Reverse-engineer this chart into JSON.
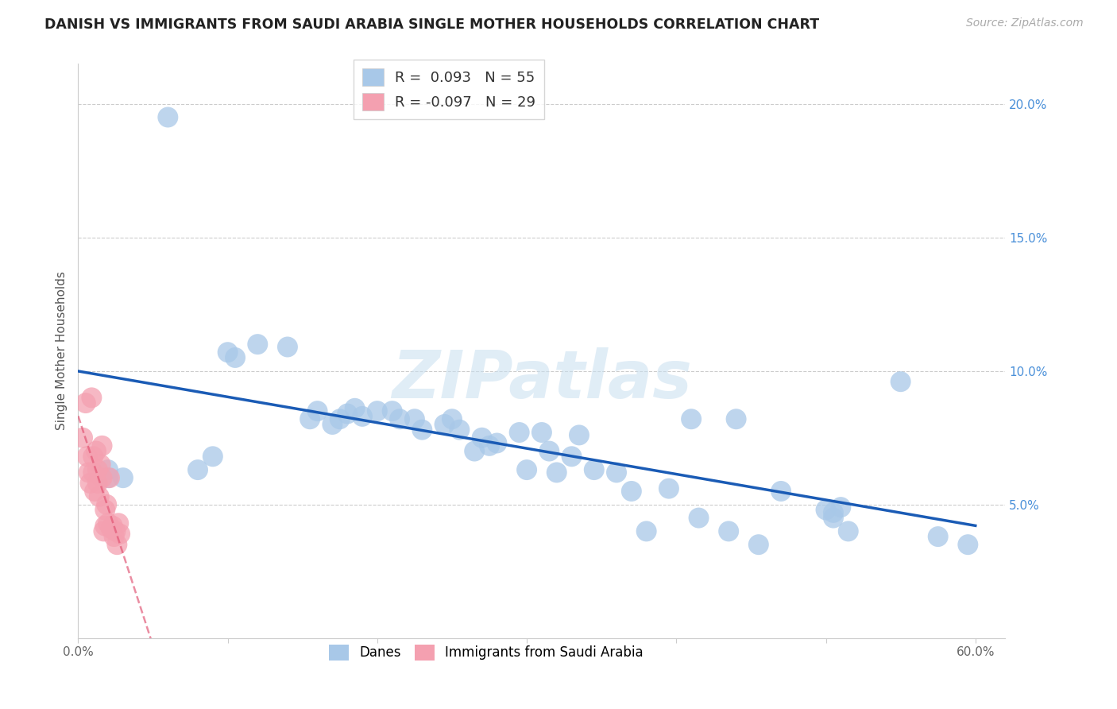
{
  "title": "DANISH VS IMMIGRANTS FROM SAUDI ARABIA SINGLE MOTHER HOUSEHOLDS CORRELATION CHART",
  "source": "Source: ZipAtlas.com",
  "ylabel": "Single Mother Households",
  "danes_R": "0.093",
  "danes_N": "55",
  "immigrants_R": "-0.097",
  "immigrants_N": "29",
  "watermark": "ZIPatlas",
  "danes_color": "#a8c8e8",
  "danes_line_color": "#1a5bb5",
  "immigrants_color": "#f4a0b0",
  "immigrants_line_color": "#e05070",
  "background_color": "#ffffff",
  "grid_color": "#cccccc",
  "danes_x": [
    0.02,
    0.02,
    0.03,
    0.06,
    0.08,
    0.09,
    0.1,
    0.105,
    0.12,
    0.14,
    0.155,
    0.16,
    0.17,
    0.175,
    0.18,
    0.185,
    0.19,
    0.2,
    0.21,
    0.215,
    0.225,
    0.23,
    0.245,
    0.25,
    0.255,
    0.265,
    0.27,
    0.275,
    0.28,
    0.295,
    0.3,
    0.31,
    0.315,
    0.32,
    0.33,
    0.335,
    0.345,
    0.36,
    0.37,
    0.38,
    0.395,
    0.41,
    0.415,
    0.435,
    0.44,
    0.455,
    0.47,
    0.5,
    0.505,
    0.505,
    0.51,
    0.515,
    0.55,
    0.575,
    0.595
  ],
  "danes_y": [
    0.063,
    0.06,
    0.06,
    0.195,
    0.063,
    0.068,
    0.107,
    0.105,
    0.11,
    0.109,
    0.082,
    0.085,
    0.08,
    0.082,
    0.084,
    0.086,
    0.083,
    0.085,
    0.085,
    0.082,
    0.082,
    0.078,
    0.08,
    0.082,
    0.078,
    0.07,
    0.075,
    0.072,
    0.073,
    0.077,
    0.063,
    0.077,
    0.07,
    0.062,
    0.068,
    0.076,
    0.063,
    0.062,
    0.055,
    0.04,
    0.056,
    0.082,
    0.045,
    0.04,
    0.082,
    0.035,
    0.055,
    0.048,
    0.045,
    0.047,
    0.049,
    0.04,
    0.096,
    0.038,
    0.035
  ],
  "immigrants_x": [
    0.003,
    0.005,
    0.006,
    0.007,
    0.008,
    0.009,
    0.01,
    0.01,
    0.011,
    0.012,
    0.013,
    0.013,
    0.014,
    0.015,
    0.016,
    0.016,
    0.017,
    0.018,
    0.018,
    0.019,
    0.02,
    0.021,
    0.022,
    0.023,
    0.024,
    0.025,
    0.026,
    0.027,
    0.028
  ],
  "immigrants_y": [
    0.075,
    0.088,
    0.068,
    0.062,
    0.058,
    0.09,
    0.068,
    0.062,
    0.055,
    0.07,
    0.063,
    0.058,
    0.053,
    0.065,
    0.072,
    0.06,
    0.04,
    0.042,
    0.048,
    0.05,
    0.043,
    0.06,
    0.041,
    0.042,
    0.038,
    0.04,
    0.035,
    0.043,
    0.039
  ],
  "xlim": [
    0.0,
    0.62
  ],
  "ylim": [
    0.0,
    0.215
  ],
  "x_ticks": [
    0.0,
    0.1,
    0.2,
    0.3,
    0.4,
    0.5,
    0.6
  ],
  "x_tick_labels": [
    "0.0%",
    "",
    "",
    "",
    "",
    "",
    "60.0%"
  ],
  "y_ticks": [
    0.05,
    0.1,
    0.15,
    0.2
  ],
  "y_tick_labels": [
    "5.0%",
    "10.0%",
    "15.0%",
    "20.0%"
  ]
}
